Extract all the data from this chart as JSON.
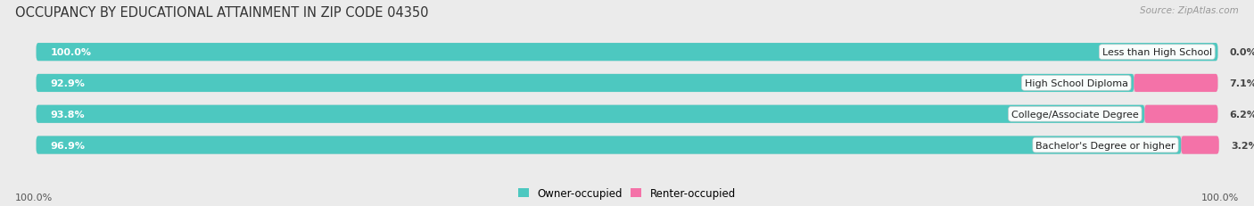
{
  "title": "OCCUPANCY BY EDUCATIONAL ATTAINMENT IN ZIP CODE 04350",
  "source": "Source: ZipAtlas.com",
  "categories": [
    "Less than High School",
    "High School Diploma",
    "College/Associate Degree",
    "Bachelor's Degree or higher"
  ],
  "owner_pct": [
    100.0,
    92.9,
    93.8,
    96.9
  ],
  "renter_pct": [
    0.0,
    7.1,
    6.2,
    3.2
  ],
  "owner_color": "#4DC8C0",
  "renter_color": "#F472A8",
  "background_color": "#ebebeb",
  "bar_bg_color": "#d8d8d8",
  "title_fontsize": 10.5,
  "label_fontsize": 8.0,
  "pct_fontsize": 8.0,
  "legend_fontsize": 8.5,
  "source_fontsize": 7.5,
  "bottom_left_label": "100.0%",
  "bottom_right_label": "100.0%"
}
